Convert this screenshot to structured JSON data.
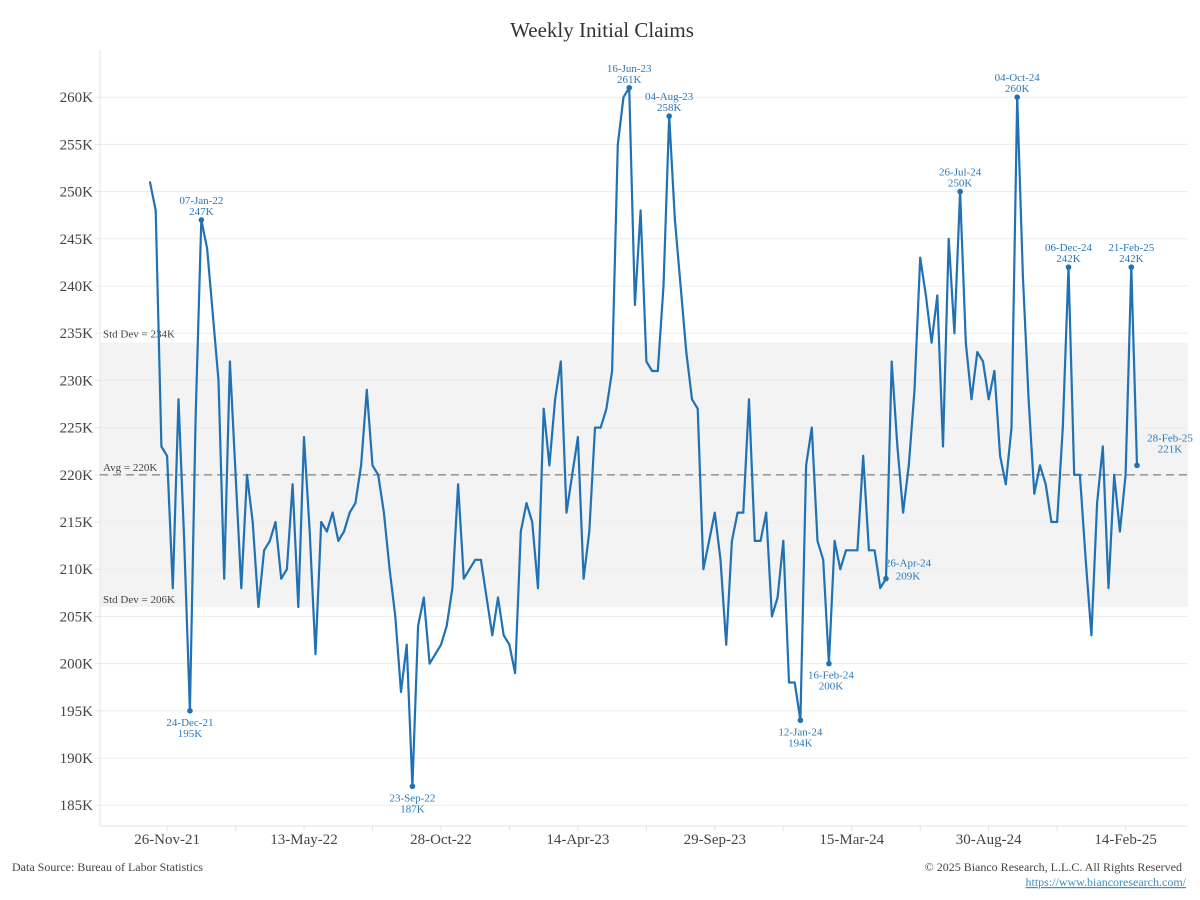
{
  "chart_data": {
    "type": "line",
    "title": "Weekly Initial Claims",
    "xlabel": "",
    "ylabel": "",
    "frequency": "weekly",
    "start_date": "05-Nov-21",
    "end_date": "28-Feb-25",
    "ylim": [
      182.8,
      265
    ],
    "y_unit": "K",
    "grid": true,
    "series": [
      {
        "name": "Weekly Initial Claims",
        "color": "#2171b5",
        "values": [
          251,
          248,
          223,
          222,
          208,
          228,
          213,
          195,
          226,
          247,
          244,
          237,
          230,
          209,
          232,
          220,
          208,
          220,
          215,
          206,
          212,
          213,
          215,
          209,
          210,
          219,
          206,
          224,
          214,
          201,
          215,
          214,
          216,
          213,
          214,
          216,
          217,
          221,
          229,
          221,
          220,
          216,
          210,
          205,
          197,
          202,
          187,
          204,
          207,
          200,
          201,
          202,
          204,
          208,
          219,
          209,
          210,
          211,
          211,
          207,
          203,
          207,
          203,
          202,
          199,
          214,
          217,
          215,
          208,
          227,
          221,
          228,
          232,
          216,
          220,
          224,
          209,
          214,
          225,
          225,
          227,
          231,
          255,
          260,
          261,
          238,
          248,
          232,
          231,
          231,
          240,
          258,
          247,
          240,
          233,
          228,
          227,
          210,
          213,
          216,
          211,
          202,
          213,
          216,
          216,
          228,
          213,
          213,
          216,
          205,
          207,
          213,
          198,
          198,
          194,
          221,
          225,
          213,
          211,
          200,
          213,
          210,
          212,
          212,
          212,
          222,
          212,
          212,
          208,
          209,
          232,
          223,
          216,
          221,
          229,
          243,
          239,
          234,
          239,
          223,
          245,
          235,
          250,
          234,
          228,
          233,
          232,
          228,
          231,
          222,
          219,
          225,
          260,
          241,
          228,
          218,
          221,
          219,
          215,
          215,
          225,
          242,
          220,
          220,
          211,
          203,
          217,
          223,
          208,
          220,
          214,
          220,
          242,
          221
        ]
      }
    ],
    "y_ticks": [
      "185K",
      "190K",
      "195K",
      "200K",
      "205K",
      "210K",
      "215K",
      "220K",
      "225K",
      "230K",
      "235K",
      "240K",
      "245K",
      "250K",
      "255K",
      "260K"
    ],
    "y_tick_values": [
      185,
      190,
      195,
      200,
      205,
      210,
      215,
      220,
      225,
      230,
      235,
      240,
      245,
      250,
      255,
      260
    ],
    "x_ticks": [
      {
        "label": "26-Nov-21",
        "index": 3
      },
      {
        "label": "13-May-22",
        "index": 27
      },
      {
        "label": "28-Oct-22",
        "index": 51
      },
      {
        "label": "14-Apr-23",
        "index": 75
      },
      {
        "label": "29-Sep-23",
        "index": 99
      },
      {
        "label": "15-Mar-24",
        "index": 123
      },
      {
        "label": "30-Aug-24",
        "index": 147
      },
      {
        "label": "14-Feb-25",
        "index": 171
      }
    ],
    "reference_lines": {
      "avg": {
        "value": 220,
        "label": "Avg = 220K"
      },
      "std_upper": {
        "value": 234,
        "label": "Std Dev = 234K"
      },
      "std_lower": {
        "value": 206,
        "label": "Std Dev = 206K"
      }
    },
    "annotations": [
      {
        "index": 7,
        "date": "24-Dec-21",
        "value_label": "195K",
        "placement": "below"
      },
      {
        "index": 9,
        "date": "07-Jan-22",
        "value_label": "247K",
        "placement": "above"
      },
      {
        "index": 46,
        "date": "23-Sep-22",
        "value_label": "187K",
        "placement": "below"
      },
      {
        "index": 84,
        "date": "16-Jun-23",
        "value_label": "261K",
        "placement": "above"
      },
      {
        "index": 91,
        "date": "04-Aug-23",
        "value_label": "258K",
        "placement": "above"
      },
      {
        "index": 114,
        "date": "12-Jan-24",
        "value_label": "194K",
        "placement": "below"
      },
      {
        "index": 119,
        "date": "16-Feb-24",
        "value_label": "200K",
        "placement": "below"
      },
      {
        "index": 129,
        "date": "26-Apr-24",
        "value_label": "209K",
        "placement": "right"
      },
      {
        "index": 142,
        "date": "26-Jul-24",
        "value_label": "250K",
        "placement": "above"
      },
      {
        "index": 152,
        "date": "04-Oct-24",
        "value_label": "260K",
        "placement": "above"
      },
      {
        "index": 161,
        "date": "06-Dec-24",
        "value_label": "242K",
        "placement": "above"
      },
      {
        "index": 172,
        "date": "21-Feb-25",
        "value_label": "242K",
        "placement": "above"
      },
      {
        "index": 173,
        "date": "28-Feb-25",
        "value_label": "221K",
        "placement": "right"
      }
    ]
  },
  "footer": {
    "source": "Data Source: Bureau of Labor Statistics",
    "copyright": "© 2025 Bianco Research, L.L.C. All Rights Reserved",
    "link": "https://www.biancoresearch.com/"
  }
}
